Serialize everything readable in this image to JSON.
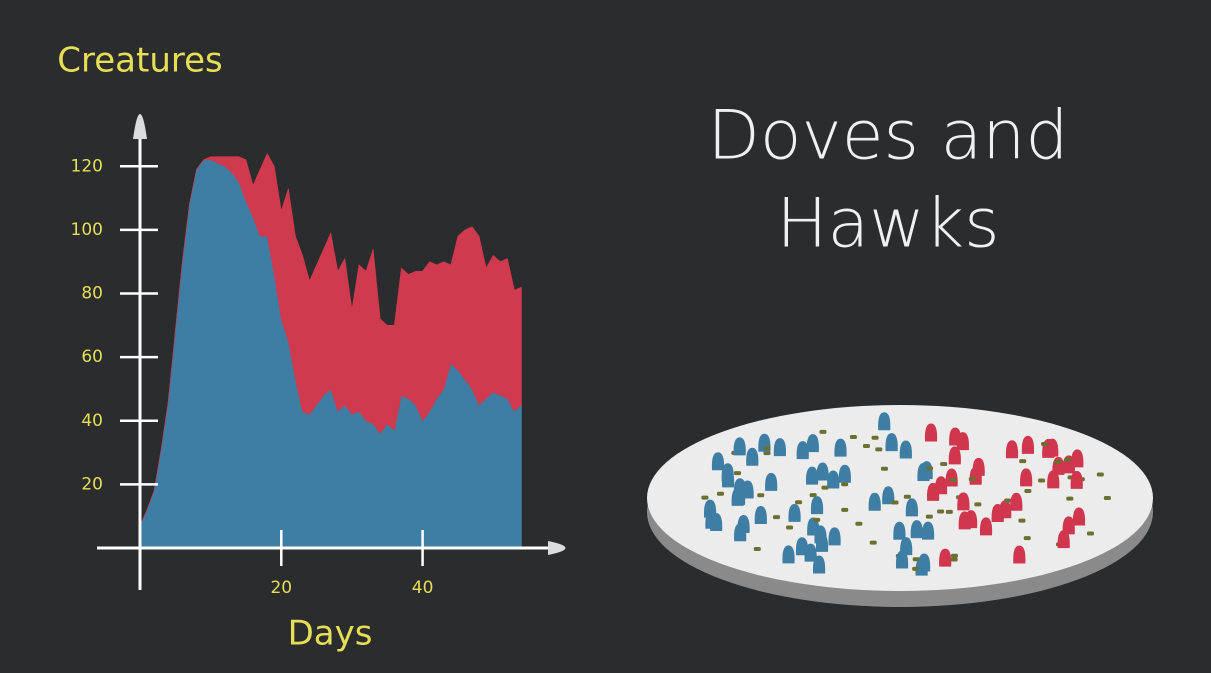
{
  "chart_data": {
    "type": "stacked-area",
    "title": [
      "Doves and",
      "Hawks"
    ],
    "ylabel": "Creatures",
    "xlabel": "Days",
    "x": [
      0,
      1,
      2,
      3,
      4,
      5,
      6,
      7,
      8,
      9,
      10,
      11,
      12,
      13,
      14,
      15,
      16,
      17,
      18,
      19,
      20,
      21,
      22,
      23,
      24,
      25,
      26,
      27,
      28,
      29,
      30,
      31,
      32,
      33,
      34,
      35,
      36,
      37,
      38,
      39,
      40,
      41,
      42,
      43,
      44,
      45,
      46,
      47,
      48,
      49,
      50,
      51,
      52,
      53,
      54
    ],
    "series": [
      {
        "color": "#3e7ea5",
        "values": [
          7,
          12,
          18,
          31,
          46,
          68,
          90,
          108,
          119,
          122,
          122,
          121,
          120,
          118,
          115,
          109,
          104,
          98,
          98,
          86,
          72,
          65,
          53,
          43,
          42,
          45,
          48,
          50,
          43,
          45,
          42,
          43,
          40,
          39,
          36,
          39,
          37,
          48,
          47,
          45,
          40,
          43,
          47,
          50,
          58,
          56,
          53,
          50,
          45,
          47,
          49,
          48,
          47,
          43,
          45
        ]
      },
      {
        "color": "#d03a4e",
        "values": [
          0,
          0,
          0,
          0,
          0,
          0,
          0,
          0,
          0,
          0,
          1,
          2,
          3,
          5,
          8,
          13,
          10,
          21,
          26,
          34,
          34,
          48,
          45,
          49,
          42,
          44,
          46,
          49,
          44,
          46,
          33,
          46,
          47,
          55,
          36,
          31,
          33,
          40,
          39,
          42,
          47,
          47,
          42,
          40,
          31,
          42,
          47,
          51,
          53,
          41,
          43,
          42,
          44,
          38,
          37
        ]
      }
    ],
    "xlim": [
      0,
      62
    ],
    "ylim": [
      0,
      138
    ],
    "xticks": [
      20,
      40
    ],
    "yticks": [
      20,
      40,
      60,
      80,
      100,
      120
    ],
    "axis_color": "#ffffff"
  }
}
